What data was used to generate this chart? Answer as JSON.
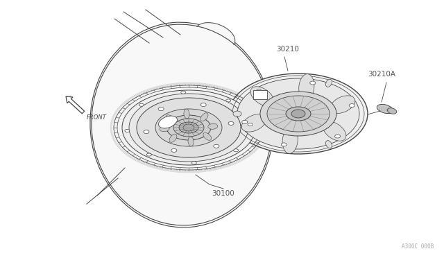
{
  "background_color": "#ffffff",
  "line_color": "#444444",
  "label_color": "#555555",
  "watermark_color": "#aaaaaa",
  "parts": {
    "flywheel_label": "30100",
    "clutch_cover_label": "30210",
    "clutch_disc_label": "30210A"
  },
  "front_arrow_text": "FRONT",
  "watermark_text": "A300C 000B",
  "fig_width": 6.4,
  "fig_height": 3.72,
  "dpi": 100
}
